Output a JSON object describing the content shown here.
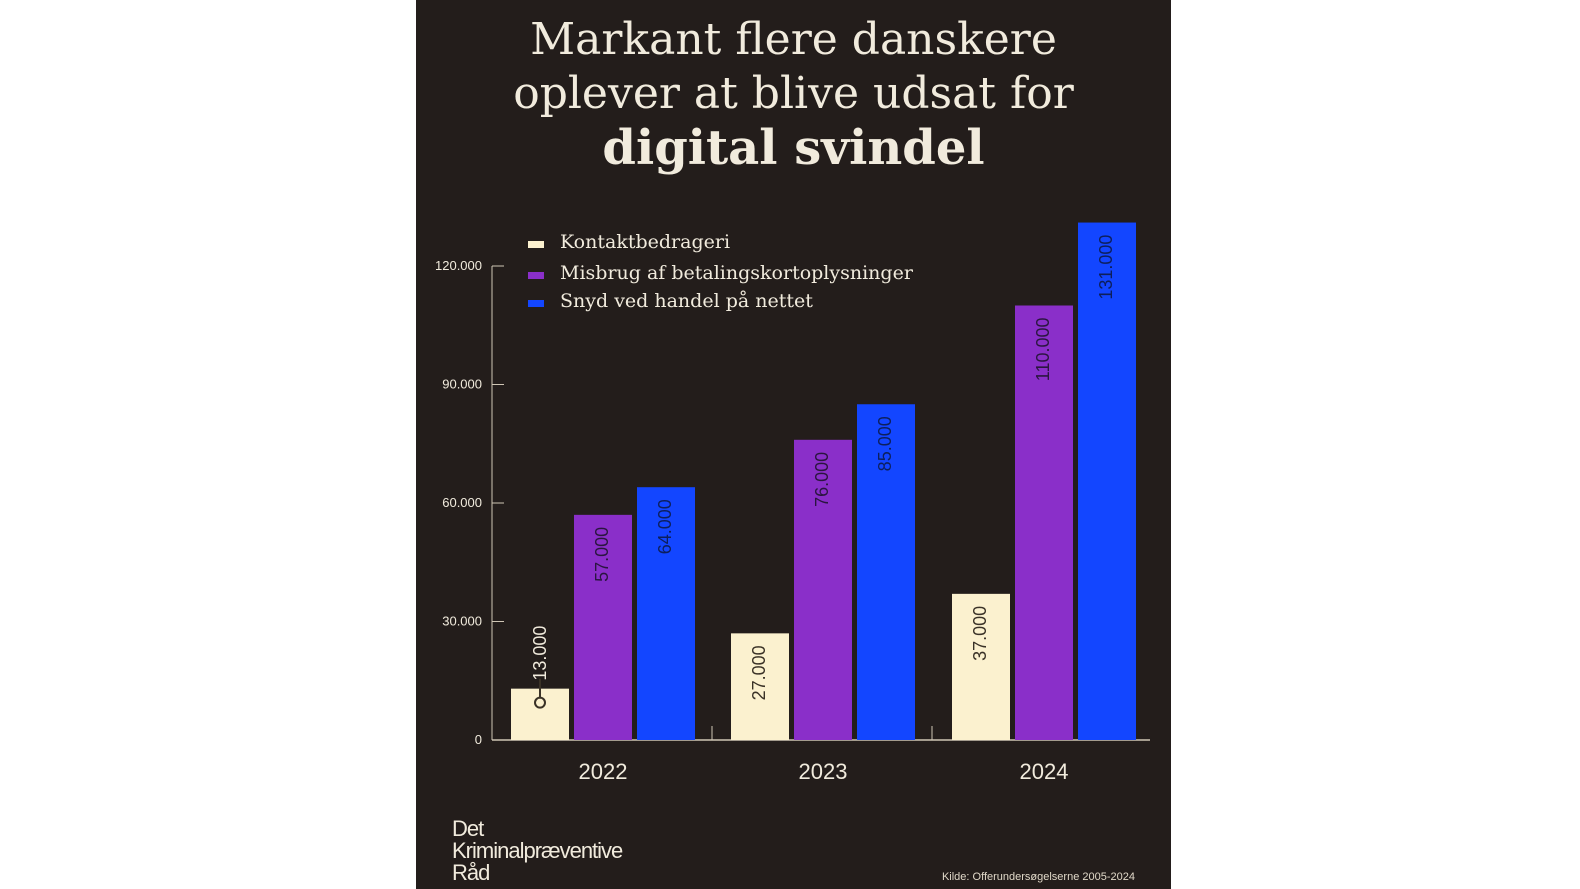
{
  "title": {
    "line1": "Markant flere danskere",
    "line2": "oplever at blive udsat for",
    "line3": "digital svindel"
  },
  "logo": {
    "line1": "Det",
    "line2": "Kriminalpræventive",
    "line3": "Råd"
  },
  "source": "Kilde: Offerundersøgelserne 2005-2024",
  "colors": {
    "background": "#231d1b",
    "text": "#f1ebdd",
    "axis": "#cfc6b5"
  },
  "chart_data": {
    "type": "bar",
    "categories": [
      "2022",
      "2023",
      "2024"
    ],
    "series": [
      {
        "name": "Kontaktbedrageri",
        "values": [
          13000,
          27000,
          37000
        ],
        "labels": [
          "13.000",
          "27.000",
          "37.000"
        ],
        "color": "#fbf1cf",
        "label_color": "#3a3227"
      },
      {
        "name": "Misbrug af betalingskortoplysninger",
        "values": [
          57000,
          76000,
          110000
        ],
        "labels": [
          "57.000",
          "76.000",
          "110.000"
        ],
        "color": "#8a2fc9",
        "label_color": "#2a1540"
      },
      {
        "name": "Snyd ved handel på nettet",
        "values": [
          64000,
          85000,
          131000
        ],
        "labels": [
          "64.000",
          "85.000",
          "131.000"
        ],
        "color": "#1346ff",
        "label_color": "#0d1f5c"
      }
    ],
    "yticks": [
      0,
      30000,
      60000,
      90000,
      120000
    ],
    "ytick_labels": [
      "0",
      "30.000",
      "60.000",
      "90.000",
      "120.000"
    ],
    "ylim": [
      0,
      131000
    ],
    "legend": "top-left",
    "grid": false
  }
}
